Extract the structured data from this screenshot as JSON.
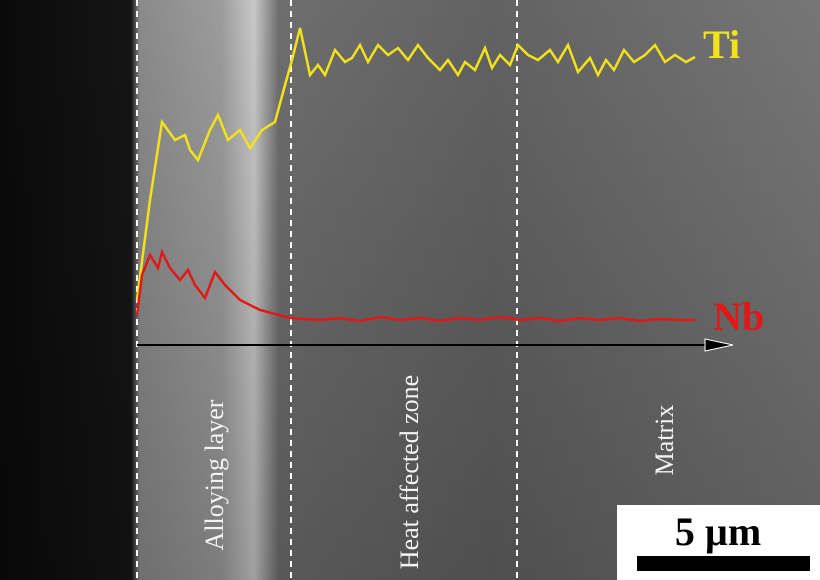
{
  "labels": {
    "ti": "Ti",
    "nb": "Nb",
    "zones": [
      "Alloying layer",
      "Heat affected zone",
      "Matrix"
    ]
  },
  "scale_bar": "5 µm"
}
